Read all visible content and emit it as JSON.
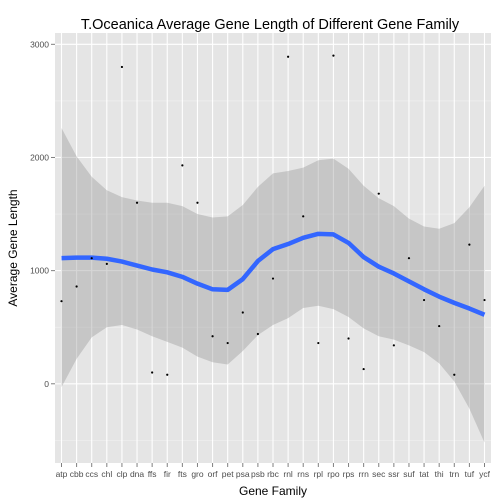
{
  "chart_data": {
    "type": "scatter",
    "title": "T.Oceanica Average Gene Length of Different Gene Family",
    "xlabel": "Gene Family",
    "ylabel": "Average Gene Length",
    "categories": [
      "atp",
      "cbb",
      "ccs",
      "chl",
      "clp",
      "dna",
      "ffs",
      "fir",
      "fts",
      "gro",
      "orf",
      "pet",
      "psa",
      "psb",
      "rbc",
      "rnl",
      "rns",
      "rpl",
      "rpo",
      "rps",
      "rrn",
      "sec",
      "ssr",
      "suf",
      "tat",
      "thi",
      "trn",
      "tuf",
      "ycf"
    ],
    "y_ticks": [
      0,
      1000,
      2000,
      3000
    ],
    "ylim": [
      -700,
      3100
    ],
    "grid": true,
    "series": [
      {
        "kind": "points",
        "values": [
          730,
          860,
          1110,
          1060,
          2800,
          1600,
          100,
          80,
          1930,
          1600,
          420,
          360,
          630,
          440,
          930,
          2890,
          1480,
          360,
          2900,
          400,
          130,
          1680,
          340,
          1110,
          740,
          510,
          80,
          1230,
          740
        ]
      },
      {
        "kind": "smooth",
        "values": [
          1110,
          1115,
          1115,
          1105,
          1080,
          1045,
          1010,
          985,
          945,
          885,
          835,
          830,
          925,
          1085,
          1190,
          1235,
          1290,
          1325,
          1320,
          1245,
          1120,
          1035,
          975,
          905,
          835,
          770,
          715,
          665,
          610
        ],
        "ci_upper": [
          2260,
          2010,
          1830,
          1710,
          1650,
          1620,
          1600,
          1600,
          1570,
          1500,
          1470,
          1480,
          1580,
          1740,
          1860,
          1880,
          1910,
          1975,
          1990,
          1900,
          1750,
          1640,
          1570,
          1460,
          1390,
          1370,
          1420,
          1560,
          1750
        ],
        "ci_lower": [
          -30,
          220,
          410,
          500,
          520,
          480,
          420,
          370,
          320,
          240,
          190,
          170,
          290,
          430,
          520,
          580,
          670,
          690,
          660,
          590,
          490,
          420,
          390,
          340,
          280,
          180,
          20,
          -220,
          -520
        ]
      }
    ],
    "colors": {
      "panel_bg": "#e5e5e5",
      "grid_major": "#ffffff",
      "grid_minor": "#f2f2f2",
      "points": "#000000",
      "smooth_line": "#3366ff",
      "ci_band": "#999999"
    }
  }
}
